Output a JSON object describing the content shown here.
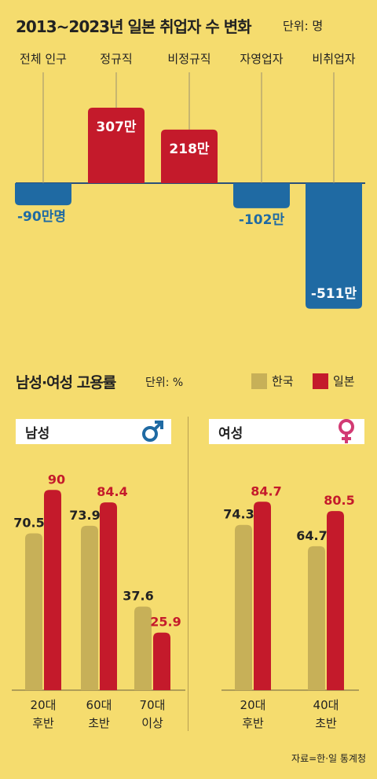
{
  "title": "2013~2023년 일본 취업자 수 변화",
  "unit_top": "단위: 명",
  "title2": "남성·여성 고용률",
  "unit_bottom": "단위: %",
  "legend": {
    "korea": "한국",
    "japan": "일본"
  },
  "panels": {
    "male": "남성",
    "female": "여성"
  },
  "source": "자료=한·일 통계청",
  "colors": {
    "background": "#f5dc6e",
    "blue": "#1f6aa3",
    "red": "#c41a2b",
    "korea": "#c7b058"
  },
  "chart_data": [
    {
      "type": "bar",
      "title": "2013~2023년 일본 취업자 수 변화",
      "unit": "단위: 명",
      "categories": [
        "전체 인구",
        "정규직",
        "비정규직",
        "자영업자",
        "비취업자"
      ],
      "values": [
        -900000,
        3070000,
        2180000,
        -1020000,
        -5110000
      ],
      "value_labels": [
        "-90만명",
        "307만",
        "218만",
        "-102만",
        "-511만"
      ]
    },
    {
      "type": "bar",
      "title": "남성",
      "unit": "단위: %",
      "categories": [
        "20대 후반",
        "60대 초반",
        "70대 이상"
      ],
      "category_lines": [
        [
          "20대",
          "후반"
        ],
        [
          "60대",
          "초반"
        ],
        [
          "70대",
          "이상"
        ]
      ],
      "series": [
        {
          "name": "한국",
          "values": [
            70.5,
            73.9,
            37.6
          ]
        },
        {
          "name": "일본",
          "values": [
            90,
            84.4,
            25.9
          ]
        }
      ]
    },
    {
      "type": "bar",
      "title": "여성",
      "unit": "단위: %",
      "categories": [
        "20대 후반",
        "40대 초반"
      ],
      "category_lines": [
        [
          "20대",
          "후반"
        ],
        [
          "40대",
          "초반"
        ]
      ],
      "series": [
        {
          "name": "한국",
          "values": [
            74.3,
            64.7
          ]
        },
        {
          "name": "일본",
          "values": [
            84.7,
            80.5
          ]
        }
      ]
    }
  ]
}
